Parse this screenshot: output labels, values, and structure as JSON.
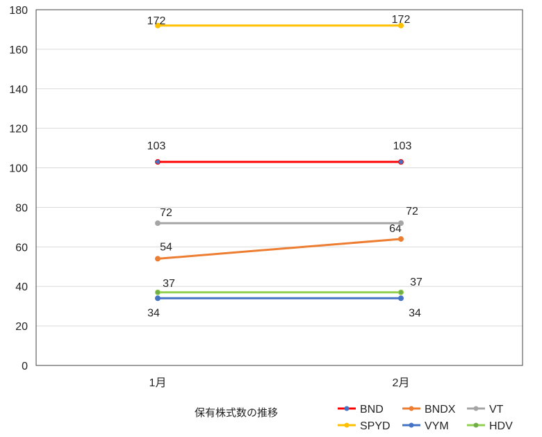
{
  "chart_data": {
    "type": "line",
    "title": "保有株式数の推移",
    "categories": [
      "1月",
      "2月"
    ],
    "ylim": [
      0,
      180
    ],
    "yticks": [
      0,
      20,
      40,
      60,
      80,
      100,
      120,
      140,
      160,
      180
    ],
    "grid": true,
    "legend_placement": "bottom-right",
    "series": [
      {
        "name": "BND",
        "values": [
          103,
          103
        ],
        "color": "#FF0000",
        "marker": "#4472C4"
      },
      {
        "name": "BNDX",
        "values": [
          54,
          64
        ],
        "color": "#ED7D31",
        "marker": "#ED7D31"
      },
      {
        "name": "VT",
        "values": [
          72,
          72
        ],
        "color": "#A5A5A5",
        "marker": "#A5A5A5"
      },
      {
        "name": "SPYD",
        "values": [
          172,
          172
        ],
        "color": "#FFC000",
        "marker": "#FFC000"
      },
      {
        "name": "VYM",
        "values": [
          34,
          34
        ],
        "color": "#4472C4",
        "marker": "#4472C4"
      },
      {
        "name": "HDV",
        "values": [
          37,
          37
        ],
        "color": "#92D050",
        "marker": "#70AD47"
      }
    ]
  }
}
